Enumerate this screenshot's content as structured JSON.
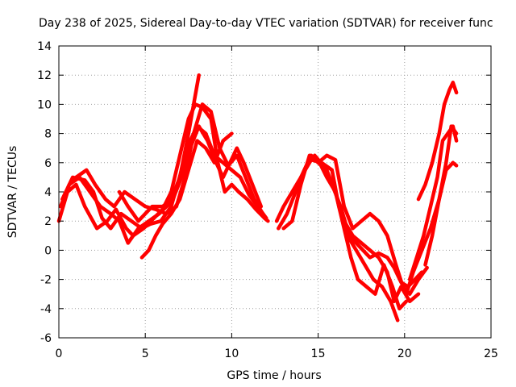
{
  "chart_data": {
    "type": "line",
    "title": "Day 238 of 2025, Sidereal Day-to-day VTEC variation (SDTVAR) for receiver func",
    "xlabel": "GPS time / hours",
    "ylabel": "SDTVAR / TECUs",
    "xlim": [
      0,
      25
    ],
    "ylim": [
      -6,
      14
    ],
    "xticks": [
      0,
      5,
      10,
      15,
      20,
      25
    ],
    "yticks": [
      -6,
      -4,
      -2,
      0,
      2,
      4,
      6,
      8,
      10,
      12,
      14
    ],
    "grid": true,
    "legend": "none",
    "series_color": "#ff0000",
    "series": [
      {
        "name": "satellite-track-1",
        "x": [
          0.0,
          0.5,
          1.0,
          1.5,
          2.2,
          2.8,
          3.3,
          3.9,
          4.3,
          4.9,
          5.5,
          6.0,
          6.5,
          7.0,
          7.5,
          7.9,
          8.3,
          8.8,
          9.2,
          9.6,
          10.0,
          10.4,
          10.9,
          11.4,
          11.9,
          12.1
        ],
        "y": [
          2.0,
          4.0,
          4.5,
          3.0,
          1.5,
          2.0,
          2.8,
          1.5,
          1.0,
          1.5,
          2.2,
          2.8,
          4.0,
          6.5,
          9.0,
          10.0,
          9.8,
          9.0,
          6.0,
          4.0,
          4.5,
          4.0,
          3.5,
          2.8,
          2.2,
          2.0
        ]
      },
      {
        "name": "satellite-track-2",
        "x": [
          0.1,
          0.6,
          1.2,
          1.8,
          2.4,
          3.0,
          3.5,
          4.0,
          4.6,
          5.2,
          5.8,
          6.4,
          7.0,
          7.5,
          7.8,
          8.1
        ],
        "y": [
          3.0,
          4.5,
          5.0,
          4.0,
          3.0,
          2.5,
          2.0,
          0.5,
          1.5,
          2.0,
          2.5,
          3.2,
          5.0,
          8.0,
          10.0,
          12.0
        ]
      },
      {
        "name": "satellite-track-3",
        "x": [
          0.2,
          0.8,
          1.5,
          2.0,
          2.5,
          3.0,
          3.6,
          4.2,
          4.8,
          5.3,
          5.9,
          6.5,
          7.1,
          7.6,
          8.0,
          8.5,
          9.0,
          9.5,
          10.0,
          10.5,
          11.0,
          11.5,
          12.0
        ],
        "y": [
          3.5,
          5.0,
          4.8,
          4.0,
          2.2,
          1.5,
          2.5,
          2.0,
          1.5,
          1.8,
          2.0,
          3.0,
          5.5,
          7.5,
          8.5,
          8.0,
          6.5,
          6.0,
          5.5,
          5.0,
          3.8,
          3.0,
          2.2
        ]
      },
      {
        "name": "satellite-track-4",
        "x": [
          1.0,
          1.6,
          2.1,
          2.7,
          3.2,
          3.8,
          4.4,
          5.0,
          5.6,
          6.2,
          6.8,
          7.3,
          7.8,
          8.3,
          8.8,
          9.3,
          9.8,
          10.3,
          10.8,
          11.3,
          11.8
        ],
        "y": [
          5.0,
          5.5,
          4.5,
          3.5,
          3.0,
          4.0,
          3.5,
          3.0,
          2.8,
          2.5,
          3.0,
          5.0,
          8.0,
          10.0,
          9.5,
          7.0,
          5.8,
          6.5,
          5.0,
          3.5,
          2.5
        ]
      },
      {
        "name": "satellite-track-5",
        "x": [
          3.5,
          4.0,
          4.6,
          5.0,
          5.4,
          6.0,
          6.6,
          7.1,
          7.6,
          8.1,
          8.6,
          9.1,
          9.5,
          9.9,
          10.3,
          10.7,
          11.2,
          11.7
        ],
        "y": [
          4.0,
          3.0,
          2.0,
          2.5,
          3.0,
          3.0,
          3.5,
          5.0,
          7.0,
          8.5,
          7.5,
          6.0,
          5.0,
          6.0,
          7.0,
          6.0,
          4.5,
          3.0
        ]
      },
      {
        "name": "satellite-track-6",
        "x": [
          4.8,
          5.2,
          5.6,
          6.0,
          6.5,
          7.0,
          7.5,
          8.0,
          8.5,
          9.0,
          9.5,
          10.0
        ],
        "y": [
          -0.5,
          0.0,
          1.0,
          1.8,
          2.5,
          3.5,
          5.5,
          7.5,
          7.0,
          6.0,
          7.5,
          8.0
        ]
      },
      {
        "name": "satellite-track-7",
        "x": [
          12.6,
          13.0,
          13.5,
          14.0,
          14.4,
          14.8,
          15.3,
          15.8,
          16.3,
          16.8,
          17.2,
          17.6,
          18.0,
          18.5,
          19.0,
          19.4,
          19.8,
          20.2,
          20.6,
          21.0
        ],
        "y": [
          2.0,
          3.0,
          4.0,
          5.0,
          6.0,
          6.5,
          5.8,
          4.5,
          3.0,
          1.0,
          0.5,
          0.0,
          -0.5,
          -0.2,
          -0.5,
          -1.2,
          -2.2,
          -2.5,
          -2.0,
          -1.5
        ]
      },
      {
        "name": "satellite-track-8",
        "x": [
          12.7,
          13.2,
          13.7,
          14.2,
          14.6,
          15.0,
          15.5,
          16.0,
          16.5,
          16.9,
          17.3,
          17.8,
          18.3,
          18.8,
          19.3,
          19.7,
          20.1
        ],
        "y": [
          1.5,
          2.5,
          4.0,
          5.5,
          6.5,
          6.0,
          5.5,
          4.0,
          1.5,
          -0.5,
          -2.0,
          -2.5,
          -3.0,
          -1.0,
          -2.5,
          -4.0,
          -3.5
        ]
      },
      {
        "name": "satellite-track-9",
        "x": [
          13.0,
          13.5,
          14.0,
          14.5,
          15.0,
          15.5,
          16.0,
          16.5,
          17.0,
          17.5,
          18.0,
          18.5,
          19.0,
          19.4,
          19.8,
          20.3,
          20.8
        ],
        "y": [
          1.5,
          2.0,
          4.5,
          6.5,
          6.2,
          5.0,
          4.0,
          2.0,
          1.0,
          0.5,
          0.0,
          -0.5,
          -1.5,
          -3.5,
          -2.5,
          -3.5,
          -3.0
        ]
      },
      {
        "name": "satellite-track-10",
        "x": [
          14.0,
          14.6,
          15.2,
          15.8,
          16.2,
          16.7,
          17.2,
          17.7,
          18.2,
          18.7,
          19.2,
          19.6
        ],
        "y": [
          5.0,
          6.2,
          6.0,
          5.5,
          3.0,
          1.0,
          0.0,
          -1.0,
          -2.0,
          -2.5,
          -3.5,
          -4.8
        ]
      },
      {
        "name": "satellite-track-11",
        "x": [
          15.0,
          15.5,
          16.0,
          16.5,
          17.0,
          17.5,
          18.0,
          18.5,
          19.0,
          19.5,
          19.9,
          20.3,
          20.8,
          21.3
        ],
        "y": [
          6.0,
          6.5,
          6.2,
          3.0,
          1.5,
          2.0,
          2.5,
          2.0,
          1.0,
          -1.0,
          -2.5,
          -3.0,
          -2.0,
          -1.2
        ]
      },
      {
        "name": "satellite-track-12",
        "x": [
          20.1,
          20.5,
          21.0,
          21.5,
          22.0,
          22.4,
          22.7,
          23.0
        ],
        "y": [
          -3.0,
          -1.5,
          0.0,
          1.5,
          3.5,
          6.0,
          8.5,
          8.0
        ]
      },
      {
        "name": "satellite-track-13",
        "x": [
          20.3,
          20.7,
          21.1,
          21.5,
          21.9,
          22.2,
          22.5,
          22.8,
          23.0
        ],
        "y": [
          -2.0,
          -0.5,
          1.0,
          3.0,
          5.0,
          7.5,
          8.0,
          8.5,
          7.5
        ]
      },
      {
        "name": "satellite-track-14",
        "x": [
          20.8,
          21.2,
          21.6,
          22.0,
          22.3,
          22.6,
          22.8,
          23.0
        ],
        "y": [
          3.5,
          4.5,
          6.0,
          8.0,
          10.0,
          11.0,
          11.5,
          10.8
        ]
      },
      {
        "name": "satellite-track-15",
        "x": [
          21.2,
          21.6,
          22.0,
          22.4,
          22.8,
          23.0
        ],
        "y": [
          -1.0,
          1.0,
          3.5,
          5.5,
          6.0,
          5.8
        ]
      }
    ]
  }
}
